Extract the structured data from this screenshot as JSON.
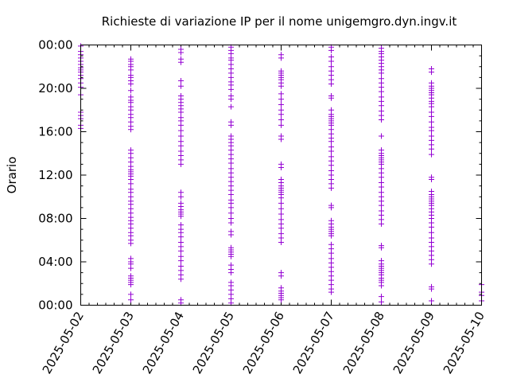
{
  "chart_data": {
    "type": "scatter",
    "title": "Richieste di variazione IP per il nome unigemgro.dyn.ingv.it",
    "ylabel": "Orario",
    "xlabel": "",
    "x_tick_labels": [
      "2025-05-02",
      "2025-05-03",
      "2025-05-04",
      "2025-05-05",
      "2025-05-06",
      "2025-05-07",
      "2025-05-08",
      "2025-05-09",
      "2025-05-10"
    ],
    "y_tick_labels": [
      "00:00",
      "04:00",
      "08:00",
      "12:00",
      "16:00",
      "20:00",
      "00:00"
    ],
    "ylim_hours": [
      0,
      24
    ],
    "grid": false,
    "marker": "+",
    "marker_color": "#9400d3",
    "days": [
      {
        "date": "2025-05-02",
        "hours": [
          23.9,
          23.4,
          23.1,
          22.8,
          22.5,
          22.2,
          21.9,
          21.7,
          21.5,
          21.2,
          20.9,
          20.5,
          20.1,
          19.4,
          17.8,
          17.5,
          17.2,
          16.6,
          16.3
        ]
      },
      {
        "date": "2025-05-03",
        "hours": [
          22.7,
          22.5,
          22.2,
          22.0,
          21.7,
          21.2,
          21.0,
          20.7,
          20.4,
          19.8,
          19.2,
          18.9,
          18.7,
          18.3,
          18.0,
          17.6,
          17.3,
          16.9,
          16.5,
          16.2,
          14.3,
          14.0,
          13.6,
          13.2,
          12.8,
          12.5,
          12.3,
          12.1,
          11.9,
          11.6,
          11.2,
          10.7,
          10.4,
          10.0,
          9.6,
          9.3,
          8.9,
          8.5,
          8.1,
          7.8,
          7.5,
          7.1,
          6.7,
          6.4,
          6.0,
          5.7,
          4.3,
          4.0,
          3.8,
          3.4,
          2.7,
          2.5,
          2.3,
          2.1,
          1.9,
          1.0,
          0.5
        ]
      },
      {
        "date": "2025-05-04",
        "hours": [
          23.6,
          23.3,
          22.7,
          22.4,
          20.7,
          20.2,
          19.3,
          19.0,
          18.7,
          18.4,
          18.1,
          17.8,
          17.3,
          17.0,
          16.6,
          16.1,
          15.6,
          15.1,
          14.7,
          14.2,
          13.8,
          13.4,
          13.0,
          10.4,
          10.0,
          9.4,
          9.1,
          8.8,
          8.6,
          8.4,
          8.2,
          7.4,
          7.0,
          6.7,
          6.3,
          5.8,
          5.4,
          5.0,
          4.5,
          4.1,
          3.6,
          3.2,
          2.8,
          2.4,
          0.5,
          0.2
        ]
      },
      {
        "date": "2025-05-05",
        "hours": [
          23.8,
          23.5,
          23.2,
          22.8,
          22.6,
          22.2,
          21.8,
          21.4,
          21.0,
          20.6,
          20.3,
          19.9,
          19.3,
          19.0,
          18.3,
          16.9,
          16.6,
          15.6,
          15.3,
          15.0,
          14.7,
          14.3,
          13.9,
          13.5,
          13.1,
          12.6,
          12.2,
          11.8,
          11.4,
          11.0,
          10.6,
          10.2,
          9.7,
          9.4,
          9.0,
          8.5,
          8.0,
          7.6,
          6.8,
          6.5,
          5.3,
          5.1,
          4.9,
          4.7,
          4.5,
          3.7,
          3.3,
          3.0,
          2.1,
          1.8,
          1.4,
          1.0,
          0.6,
          0.2
        ]
      },
      {
        "date": "2025-05-06",
        "hours": [
          23.1,
          22.8,
          21.6,
          21.4,
          21.2,
          21.0,
          20.8,
          20.5,
          20.2,
          19.5,
          19.0,
          18.5,
          18.0,
          17.6,
          17.1,
          16.6,
          15.6,
          15.3,
          13.0,
          12.7,
          11.6,
          11.3,
          11.0,
          10.8,
          10.6,
          10.4,
          10.2,
          9.9,
          9.4,
          8.9,
          8.4,
          7.9,
          7.5,
          7.1,
          6.6,
          6.2,
          5.8,
          3.0,
          2.7,
          1.6,
          1.3,
          1.1,
          0.9,
          0.7,
          0.5
        ]
      },
      {
        "date": "2025-05-07",
        "hours": [
          23.8,
          23.5,
          22.9,
          22.5,
          22.0,
          21.6,
          21.2,
          20.8,
          20.4,
          19.3,
          19.1,
          18.0,
          17.6,
          17.4,
          17.2,
          17.0,
          16.8,
          16.6,
          16.2,
          15.8,
          15.4,
          15.1,
          14.6,
          14.2,
          13.7,
          13.3,
          12.9,
          12.4,
          12.0,
          11.6,
          11.2,
          10.8,
          9.2,
          9.0,
          7.8,
          7.5,
          7.2,
          7.0,
          6.8,
          6.6,
          6.4,
          5.6,
          5.2,
          4.8,
          4.3,
          3.9,
          3.5,
          3.1,
          2.7,
          2.3,
          1.9,
          1.5,
          1.2
        ]
      },
      {
        "date": "2025-05-08",
        "hours": [
          23.7,
          23.4,
          23.2,
          22.9,
          22.6,
          22.3,
          22.0,
          21.7,
          21.4,
          20.9,
          20.5,
          20.1,
          19.7,
          19.2,
          18.8,
          18.4,
          17.9,
          17.5,
          17.1,
          15.6,
          14.3,
          14.0,
          13.8,
          13.6,
          13.4,
          13.2,
          13.0,
          12.6,
          12.2,
          11.8,
          11.3,
          10.9,
          10.4,
          10.0,
          9.6,
          9.2,
          8.7,
          8.3,
          7.9,
          7.5,
          5.5,
          5.3,
          4.1,
          3.8,
          3.6,
          3.4,
          3.2,
          3.0,
          2.8,
          2.5,
          2.3,
          2.1,
          1.8,
          0.8,
          0.3
        ]
      },
      {
        "date": "2025-05-09",
        "hours": [
          21.8,
          21.5,
          20.5,
          20.2,
          20.0,
          19.8,
          19.6,
          19.4,
          19.1,
          18.8,
          18.6,
          18.3,
          17.8,
          17.4,
          16.9,
          16.4,
          16.1,
          15.6,
          15.2,
          14.8,
          14.4,
          13.9,
          11.8,
          11.6,
          10.5,
          10.2,
          10.0,
          9.8,
          9.6,
          9.4,
          9.2,
          8.9,
          8.6,
          8.3,
          8.0,
          7.6,
          7.2,
          6.7,
          6.2,
          5.8,
          5.4,
          5.0,
          4.6,
          4.2,
          3.8,
          1.7,
          1.5,
          0.4
        ]
      },
      {
        "date": "2025-05-10",
        "hours": [
          1.9,
          1.2,
          0.9,
          0.4
        ]
      }
    ]
  }
}
